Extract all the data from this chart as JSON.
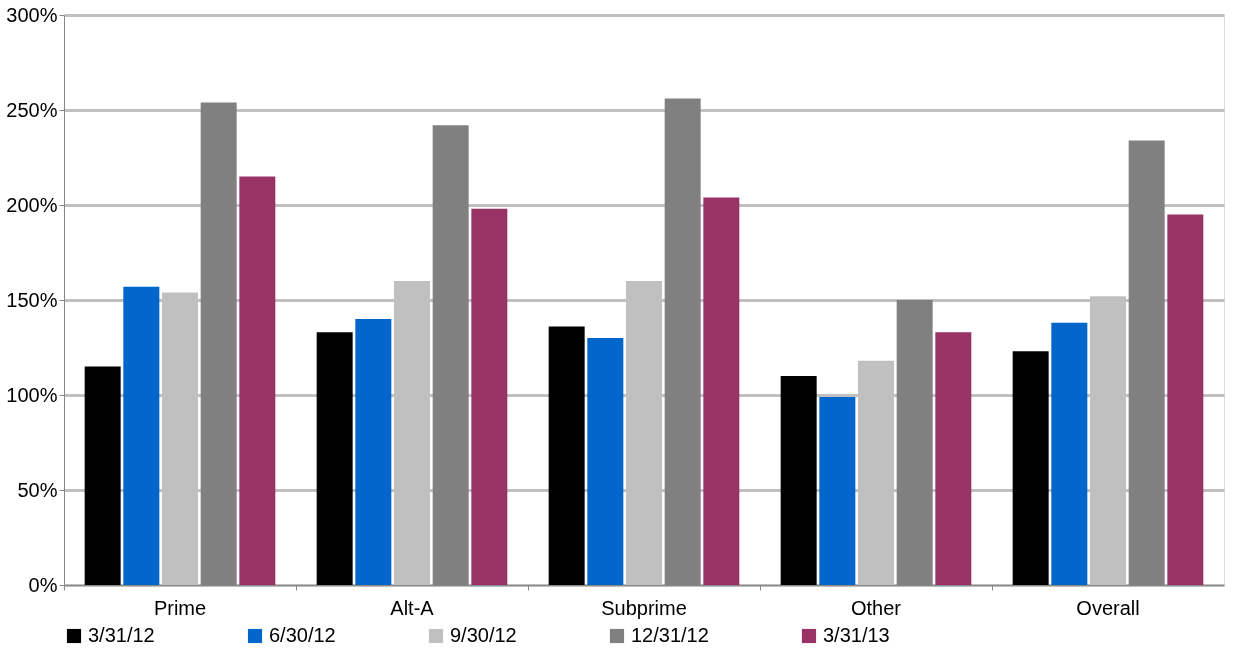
{
  "chart_data": {
    "type": "bar",
    "categories": [
      "Prime",
      "Alt-A",
      "Subprime",
      "Other",
      "Overall"
    ],
    "series": [
      {
        "name": "3/31/12",
        "color": "#000000",
        "values": [
          115,
          133,
          136,
          110,
          123
        ]
      },
      {
        "name": "6/30/12",
        "color": "#0066cc",
        "values": [
          157,
          140,
          130,
          99,
          138
        ]
      },
      {
        "name": "9/30/12",
        "color": "#c0c0c0",
        "values": [
          154,
          160,
          160,
          118,
          152
        ]
      },
      {
        "name": "12/31/12",
        "color": "#808080",
        "values": [
          254,
          242,
          256,
          150,
          234
        ]
      },
      {
        "name": "3/31/13",
        "color": "#993366",
        "values": [
          215,
          198,
          204,
          133,
          195
        ]
      }
    ],
    "ylim": [
      0,
      300
    ],
    "yticks": [
      {
        "value": 0,
        "label": "0%"
      },
      {
        "value": 50,
        "label": "50%"
      },
      {
        "value": 100,
        "label": "100%"
      },
      {
        "value": 150,
        "label": "150%"
      },
      {
        "value": 200,
        "label": "200%"
      },
      {
        "value": 250,
        "label": "250%"
      },
      {
        "value": 300,
        "label": "300%"
      }
    ],
    "grid": "y",
    "legend": "bottom"
  }
}
